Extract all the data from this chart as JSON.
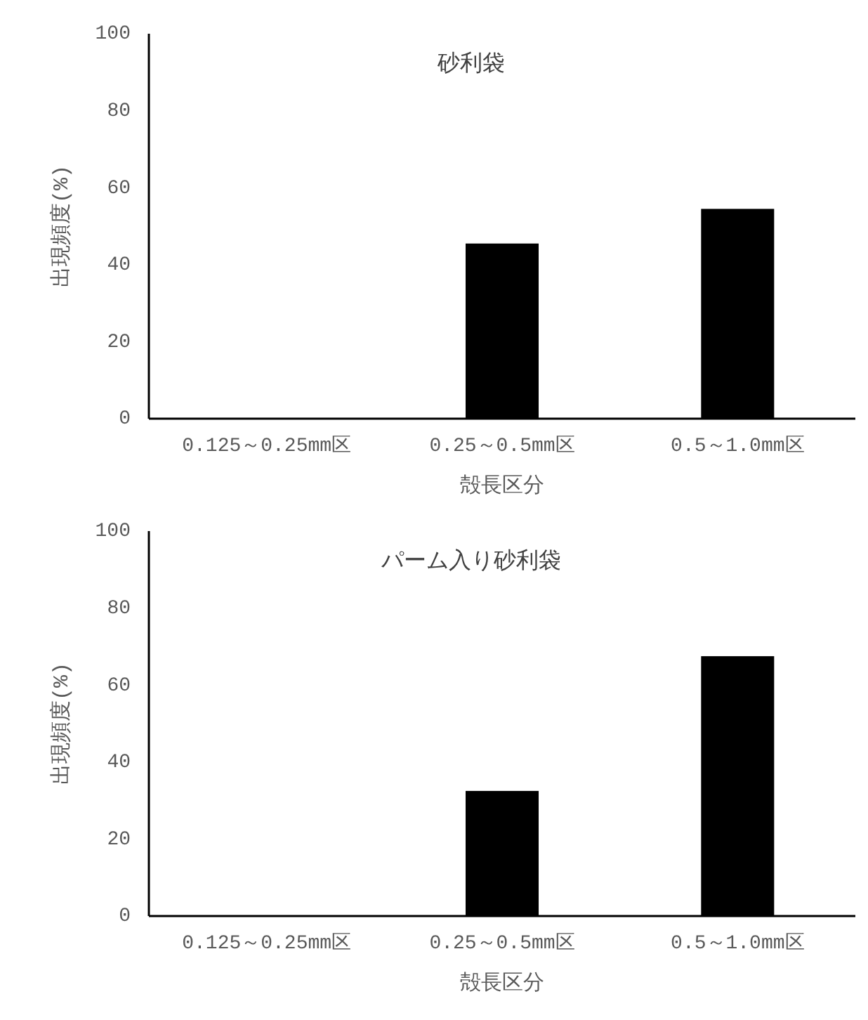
{
  "chart_data": [
    {
      "type": "bar",
      "title": "砂利袋",
      "xlabel": "殻長区分",
      "ylabel": "出現頻度(%)",
      "categories": [
        "0.125～0.25mm区",
        "0.25～0.5mm区",
        "0.5～1.0mm区"
      ],
      "values": [
        0,
        45.5,
        54.5
      ],
      "color": "#000000",
      "ylim": [
        0,
        100
      ],
      "yticks": [
        0,
        20,
        40,
        60,
        80,
        100
      ],
      "grid": false
    },
    {
      "type": "bar",
      "title": "パーム入り砂利袋",
      "xlabel": "殻長区分",
      "ylabel": "出現頻度(%)",
      "categories": [
        "0.125～0.25mm区",
        "0.25～0.5mm区",
        "0.5～1.0mm区"
      ],
      "values": [
        0,
        32.5,
        67.5
      ],
      "color": "#000000",
      "ylim": [
        0,
        100
      ],
      "yticks": [
        0,
        20,
        40,
        60,
        80,
        100
      ],
      "grid": false
    }
  ]
}
